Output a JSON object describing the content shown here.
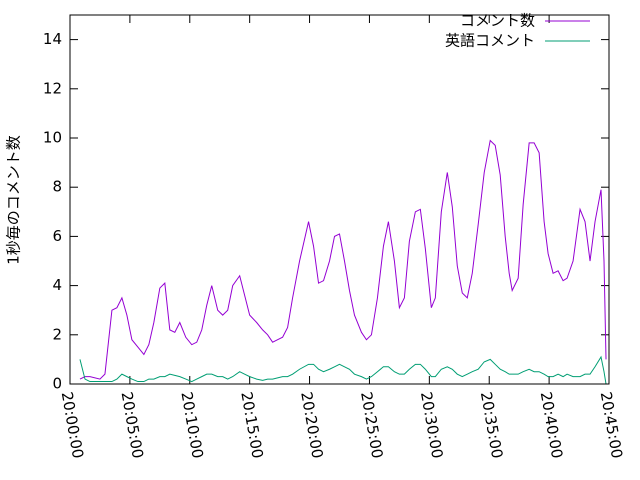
{
  "chart_data": {
    "type": "line",
    "ylabel": "1秒毎のコメント数",
    "x": [
      "20:00:50",
      "20:01:15",
      "20:01:40",
      "20:02:30",
      "20:02:55",
      "20:03:30",
      "20:03:55",
      "20:04:20",
      "20:04:45",
      "20:05:10",
      "20:05:40",
      "20:06:10",
      "20:06:35",
      "20:07:00",
      "20:07:30",
      "20:07:55",
      "20:08:20",
      "20:08:45",
      "20:09:10",
      "20:09:40",
      "20:10:10",
      "20:10:35",
      "20:11:00",
      "20:11:25",
      "20:11:50",
      "20:12:20",
      "20:12:45",
      "20:13:10",
      "20:13:35",
      "20:14:10",
      "20:14:35",
      "20:15:00",
      "20:15:35",
      "20:16:05",
      "20:16:30",
      "20:16:55",
      "20:17:20",
      "20:17:45",
      "20:18:10",
      "20:18:35",
      "20:19:10",
      "20:19:55",
      "20:20:20",
      "20:20:45",
      "20:21:10",
      "20:21:40",
      "20:22:05",
      "20:22:30",
      "20:22:55",
      "20:23:20",
      "20:23:45",
      "20:24:20",
      "20:24:45",
      "20:25:10",
      "20:25:40",
      "20:26:10",
      "20:26:35",
      "20:27:05",
      "20:27:30",
      "20:27:55",
      "20:28:20",
      "20:28:50",
      "20:29:15",
      "20:29:40",
      "20:30:10",
      "20:30:30",
      "20:31:00",
      "20:31:30",
      "20:31:55",
      "20:32:20",
      "20:32:45",
      "20:33:10",
      "20:33:35",
      "20:34:05",
      "20:34:35",
      "20:35:05",
      "20:35:30",
      "20:35:55",
      "20:36:20",
      "20:36:40",
      "20:36:55",
      "20:37:25",
      "20:37:50",
      "20:38:20",
      "20:38:45",
      "20:39:10",
      "20:39:35",
      "20:39:55",
      "20:40:20",
      "20:40:45",
      "20:41:10",
      "20:41:30",
      "20:42:00",
      "20:42:35",
      "20:43:00",
      "20:43:25",
      "20:43:50",
      "20:44:20",
      "20:44:35",
      "20:44:45"
    ],
    "series": [
      {
        "name": "コメント数",
        "color": "#9400d3",
        "values": [
          0.2,
          0.3,
          0.3,
          0.2,
          0.4,
          3.0,
          3.1,
          3.5,
          2.8,
          1.8,
          1.5,
          1.2,
          1.6,
          2.5,
          3.9,
          4.1,
          2.2,
          2.1,
          2.5,
          1.9,
          1.6,
          1.7,
          2.2,
          3.2,
          4.0,
          3.0,
          2.8,
          3.0,
          4.0,
          4.4,
          3.6,
          2.8,
          2.5,
          2.2,
          2.0,
          1.7,
          1.8,
          1.9,
          2.3,
          3.5,
          5.0,
          6.6,
          5.6,
          4.1,
          4.2,
          5.0,
          6.0,
          6.1,
          5.0,
          3.8,
          2.8,
          2.1,
          1.8,
          2.0,
          3.5,
          5.6,
          6.6,
          5.0,
          3.1,
          3.5,
          5.8,
          7.0,
          7.1,
          5.5,
          3.1,
          3.5,
          7.0,
          8.6,
          7.2,
          4.8,
          3.7,
          3.5,
          4.5,
          6.5,
          8.6,
          9.9,
          9.7,
          8.5,
          6.0,
          4.5,
          3.8,
          4.3,
          7.3,
          9.8,
          9.8,
          9.4,
          6.6,
          5.3,
          4.5,
          4.6,
          4.2,
          4.3,
          5.0,
          7.1,
          6.6,
          5.0,
          6.6,
          7.9,
          5.0,
          1.0
        ]
      },
      {
        "name": "英語コメント",
        "color": "#009e73",
        "values": [
          1.0,
          0.2,
          0.1,
          0.1,
          0.1,
          0.1,
          0.2,
          0.4,
          0.3,
          0.2,
          0.1,
          0.1,
          0.2,
          0.2,
          0.3,
          0.3,
          0.4,
          0.35,
          0.3,
          0.2,
          0.1,
          0.2,
          0.3,
          0.4,
          0.4,
          0.3,
          0.3,
          0.2,
          0.3,
          0.5,
          0.4,
          0.3,
          0.2,
          0.15,
          0.2,
          0.2,
          0.25,
          0.3,
          0.3,
          0.4,
          0.6,
          0.8,
          0.8,
          0.6,
          0.5,
          0.6,
          0.7,
          0.8,
          0.7,
          0.6,
          0.4,
          0.3,
          0.2,
          0.3,
          0.5,
          0.7,
          0.7,
          0.5,
          0.4,
          0.4,
          0.6,
          0.8,
          0.8,
          0.6,
          0.3,
          0.3,
          0.6,
          0.7,
          0.6,
          0.4,
          0.3,
          0.4,
          0.5,
          0.6,
          0.9,
          1.0,
          0.8,
          0.6,
          0.5,
          0.4,
          0.4,
          0.4,
          0.5,
          0.6,
          0.5,
          0.5,
          0.4,
          0.3,
          0.3,
          0.4,
          0.3,
          0.4,
          0.3,
          0.3,
          0.4,
          0.4,
          0.7,
          1.1,
          0.5,
          0.0
        ]
      }
    ],
    "xlim": [
      "20:00:00",
      "20:45:00"
    ],
    "xticks": [
      "20:00:00",
      "20:05:00",
      "20:10:00",
      "20:15:00",
      "20:20:00",
      "20:25:00",
      "20:30:00",
      "20:35:00",
      "20:40:00",
      "20:45:00"
    ],
    "ylim": [
      0,
      15
    ],
    "yticks": [
      0,
      2,
      4,
      6,
      8,
      10,
      12,
      14
    ],
    "legend": "top-right"
  }
}
